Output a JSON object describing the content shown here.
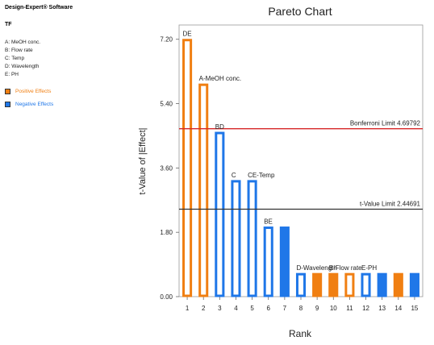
{
  "app": {
    "brand": "Design-Expert® Software"
  },
  "response": "TF",
  "factors": [
    "A: MeOH conc.",
    "B: Flow rate",
    "C: Temp",
    "D: Wavelength",
    "E: PH"
  ],
  "legend": {
    "positive": {
      "label": "Positive Effects",
      "color": "#f07f12"
    },
    "negative": {
      "label": "Negative Effects",
      "color": "#1f77e8"
    }
  },
  "chart_data": {
    "type": "bar",
    "title": "Pareto Chart",
    "xlabel": "Rank",
    "ylabel": "t-Value of |Effect|",
    "ylim": [
      0,
      7.6
    ],
    "yticks": [
      "0.00",
      "1.80",
      "3.60",
      "5.40",
      "7.20"
    ],
    "categories": [
      "1",
      "2",
      "3",
      "4",
      "5",
      "6",
      "7",
      "8",
      "9",
      "10",
      "11",
      "12",
      "13",
      "14",
      "15"
    ],
    "values": [
      7.2,
      5.95,
      4.6,
      3.25,
      3.25,
      1.95,
      1.95,
      0.65,
      0.65,
      0.65,
      0.65,
      0.65,
      0.65,
      0.65,
      0.65
    ],
    "signs": [
      "positive",
      "positive",
      "negative",
      "negative",
      "negative",
      "negative",
      "negative",
      "negative",
      "positive",
      "positive",
      "positive",
      "negative",
      "negative",
      "positive",
      "negative"
    ],
    "fills": [
      "outline",
      "outline",
      "outline",
      "outline",
      "outline",
      "outline",
      "solid",
      "outline",
      "solid",
      "solid",
      "outline",
      "outline",
      "solid",
      "solid",
      "solid"
    ],
    "bar_labels": [
      "DE",
      "A-MeOH conc.",
      "BD",
      "",
      "CE-Temp",
      "BE",
      "",
      "D-Wavelength",
      "",
      "B-Flow rate",
      "",
      "E-PH",
      "",
      "",
      ""
    ],
    "extra_labels": [
      "C"
    ],
    "reference_lines": [
      {
        "label": "Bonferroni Limit 4.69792",
        "value": 4.69792,
        "color": "#d62728"
      },
      {
        "label": "t-Value Limit 2.44691",
        "value": 2.44691,
        "color": "#333333"
      }
    ]
  }
}
